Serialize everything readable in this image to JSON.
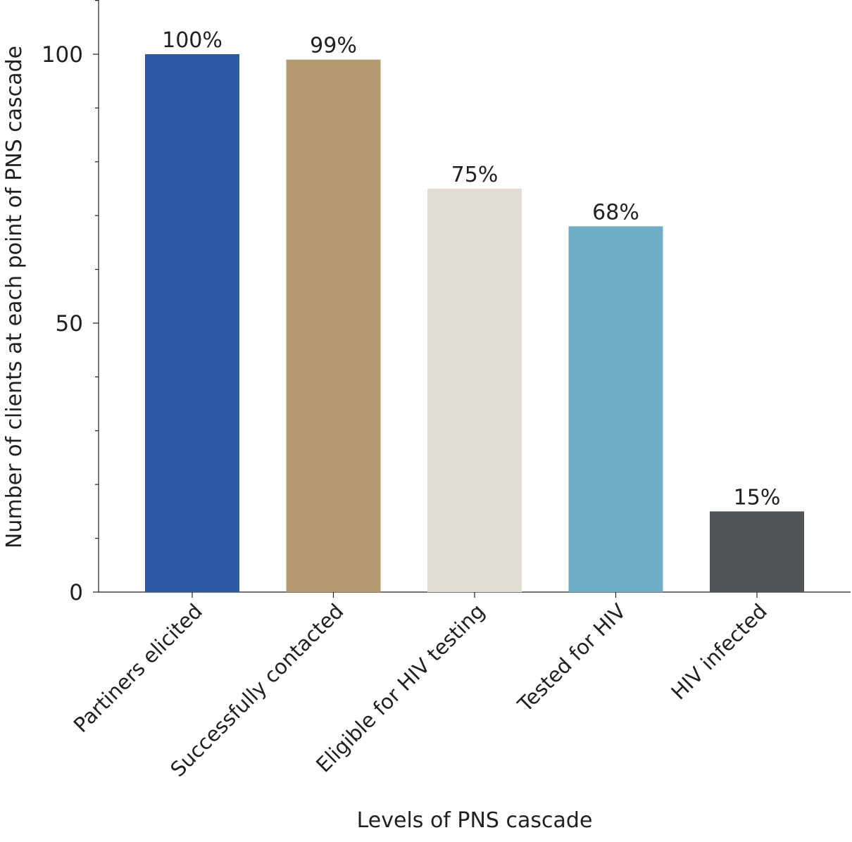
{
  "chart_data": {
    "type": "bar",
    "categories": [
      "Partiners elicited",
      "Successfully contacted",
      "Eligible for HIV testing",
      "Tested for HIV",
      "HIV infected"
    ],
    "values": [
      100,
      99,
      75,
      68,
      15
    ],
    "data_labels": [
      "100%",
      "99%",
      "75%",
      "68%",
      "15%"
    ],
    "colors": [
      "#2d59a3",
      "#b59b6f",
      "#e1ddd3",
      "#70adc8",
      "#505459"
    ],
    "xlabel": "Levels of PNS cascade",
    "ylabel": "Number of clients at each point of PNS cascade",
    "ylim": [
      0,
      110
    ],
    "yticks": [
      0,
      50,
      100
    ],
    "grid": false,
    "legend": "none"
  }
}
